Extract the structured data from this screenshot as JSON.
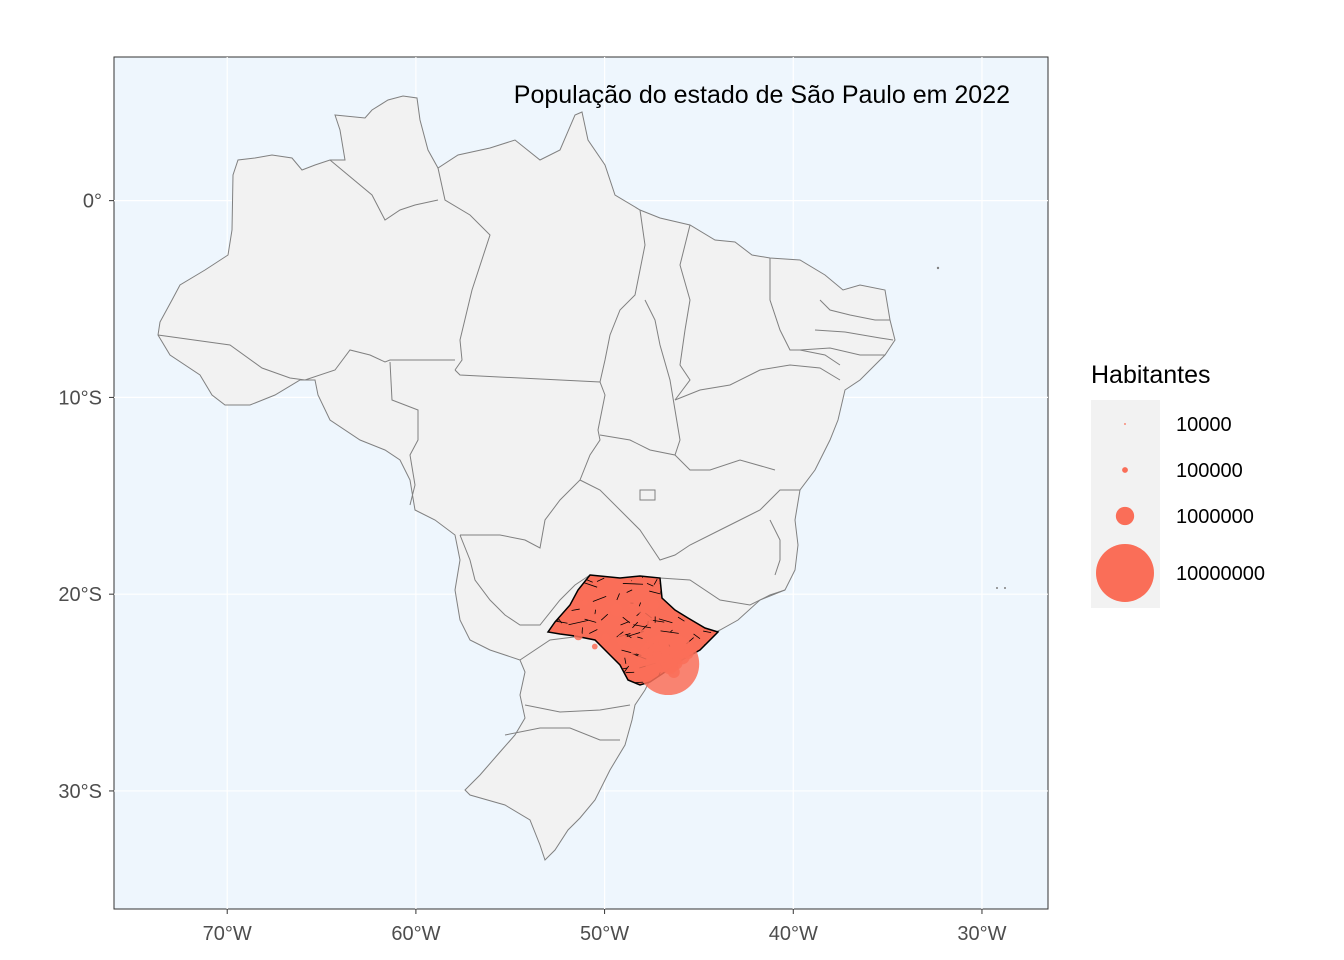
{
  "title": "População do estado de São Paulo em 2022",
  "colors": {
    "panel_background": "#EEF6FD",
    "land_fill": "#F2F2F2",
    "state_border": "#808080",
    "municipality_border": "#000000",
    "point_fill": "#FA6E58",
    "grid": "#FFFFFF",
    "legend_key_background": "#F2F2F2"
  },
  "axes": {
    "x_ticks": [
      "70°W",
      "60°W",
      "50°W",
      "40°W",
      "30°W"
    ],
    "y_ticks": [
      "0°",
      "10°S",
      "20°S",
      "30°S"
    ]
  },
  "legend": {
    "title": "Habitantes",
    "items": [
      {
        "label": "10000",
        "value": 10000
      },
      {
        "label": "100000",
        "value": 100000
      },
      {
        "label": "1000000",
        "value": 1000000
      },
      {
        "label": "10000000",
        "value": 10000000
      }
    ]
  },
  "chart_data": {
    "type": "scatter",
    "title": "População do estado de São Paulo em 2022",
    "x_ticks": [
      -70,
      -60,
      -50,
      -40,
      -30
    ],
    "y_ticks": [
      0,
      -10,
      -20,
      -30
    ],
    "xlim": [
      -76,
      -26.5
    ],
    "ylim": [
      -36,
      7.3
    ],
    "size_legend": {
      "title": "Habitantes",
      "values": [
        10000,
        100000,
        1000000,
        10000000
      ]
    },
    "points": [
      {
        "lon": -46.63,
        "lat": -23.55,
        "pop": 11450000
      },
      {
        "lon": -46.53,
        "lat": -23.46,
        "pop": 1290000
      },
      {
        "lon": -47.06,
        "lat": -22.91,
        "pop": 1140000
      },
      {
        "lon": -46.55,
        "lat": -23.67,
        "pop": 750000
      },
      {
        "lon": -47.45,
        "lat": -23.5,
        "pop": 720000
      },
      {
        "lon": -45.89,
        "lat": -23.18,
        "pop": 700000
      },
      {
        "lon": -47.81,
        "lat": -21.18,
        "pop": 700000
      },
      {
        "lon": -46.33,
        "lat": -23.96,
        "pop": 420000
      },
      {
        "lon": -49.38,
        "lat": -20.81,
        "pop": 480000
      },
      {
        "lon": -49.06,
        "lat": -22.32,
        "pop": 380000
      },
      {
        "lon": -47.65,
        "lat": -22.73,
        "pop": 400000
      },
      {
        "lon": -51.39,
        "lat": -22.12,
        "pop": 230000
      },
      {
        "lon": -47.89,
        "lat": -22.01,
        "pop": 250000
      },
      {
        "lon": -49.95,
        "lat": -22.21,
        "pop": 240000
      },
      {
        "lon": -50.43,
        "lat": -21.2,
        "pop": 200000
      },
      {
        "lon": -47.4,
        "lat": -20.54,
        "pop": 360000
      },
      {
        "lon": -46.88,
        "lat": -23.18,
        "pop": 440000
      },
      {
        "lon": -47.21,
        "lat": -23.1,
        "pop": 250000
      },
      {
        "lon": -46.2,
        "lat": -23.52,
        "pop": 450000
      },
      {
        "lon": -45.56,
        "lat": -23.03,
        "pop": 320000
      },
      {
        "lon": -51.05,
        "lat": -20.42,
        "pop": 110000
      },
      {
        "lon": -48.55,
        "lat": -20.56,
        "pop": 120000
      },
      {
        "lon": -50.52,
        "lat": -22.66,
        "pop": 100000
      },
      {
        "lon": -48.44,
        "lat": -22.88,
        "pop": 150000
      },
      {
        "lon": -47.28,
        "lat": -22.74,
        "pop": 200000
      },
      {
        "lon": -47.4,
        "lat": -22.56,
        "pop": 320000
      }
    ]
  }
}
